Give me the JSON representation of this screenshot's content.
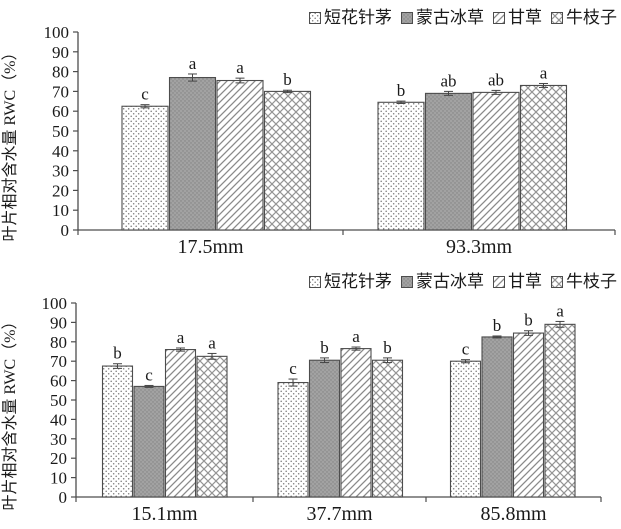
{
  "colors": {
    "bar_border": "#4d4d4d",
    "axis": "#4d4d4d",
    "text": "#1a1a1a",
    "gray_fill": "#a2a2a2",
    "pattern_line": "#8a8a8a"
  },
  "chart_data": [
    {
      "type": "bar",
      "title": "",
      "xlabel": "",
      "ylabel": "叶片相对含水量 RWC（%）",
      "ylim": [
        0,
        100
      ],
      "ytick_step": 10,
      "grid": false,
      "legend_position": "top-right",
      "error_bars": true,
      "categories": [
        "17.5mm",
        "93.3mm"
      ],
      "series": [
        {
          "name": "短花针茅",
          "pattern": "dots",
          "values": [
            62.5,
            64.5
          ],
          "errors": [
            0.8,
            0.6
          ],
          "sig_letters": [
            "c",
            "b"
          ]
        },
        {
          "name": "蒙古冰草",
          "pattern": "gray",
          "values": [
            77.0,
            69.0
          ],
          "errors": [
            1.8,
            1.0
          ],
          "sig_letters": [
            "a",
            "ab"
          ]
        },
        {
          "name": "甘草",
          "pattern": "diagonal",
          "values": [
            75.5,
            69.5
          ],
          "errors": [
            1.2,
            1.0
          ],
          "sig_letters": [
            "a",
            "ab"
          ]
        },
        {
          "name": "牛枝子",
          "pattern": "crosshatch",
          "values": [
            70.0,
            73.0
          ],
          "errors": [
            0.6,
            1.0
          ],
          "sig_letters": [
            "b",
            "a"
          ]
        }
      ]
    },
    {
      "type": "bar",
      "title": "",
      "xlabel": "",
      "ylabel": "叶片相对含水量 RWC（%）",
      "ylim": [
        0,
        100
      ],
      "ytick_step": 10,
      "grid": false,
      "legend_position": "top-right",
      "error_bars": true,
      "categories": [
        "15.1mm",
        "37.7mm",
        "85.8mm"
      ],
      "series": [
        {
          "name": "短花针茅",
          "pattern": "dots",
          "values": [
            67.5,
            59.0,
            70.0
          ],
          "errors": [
            1.2,
            1.8,
            0.8
          ],
          "sig_letters": [
            "b",
            "c",
            "c"
          ]
        },
        {
          "name": "蒙古冰草",
          "pattern": "gray",
          "values": [
            57.0,
            70.5,
            82.5
          ],
          "errors": [
            0.5,
            1.2,
            0.5
          ],
          "sig_letters": [
            "c",
            "b",
            "b"
          ]
        },
        {
          "name": "甘草",
          "pattern": "diagonal",
          "values": [
            76.0,
            76.5,
            84.5
          ],
          "errors": [
            0.8,
            0.8,
            1.2
          ],
          "sig_letters": [
            "a",
            "a",
            "b"
          ]
        },
        {
          "name": "牛枝子",
          "pattern": "crosshatch",
          "values": [
            72.5,
            70.5,
            89.0
          ],
          "errors": [
            1.5,
            1.2,
            1.5
          ],
          "sig_letters": [
            "a",
            "b",
            "a"
          ]
        }
      ]
    }
  ]
}
